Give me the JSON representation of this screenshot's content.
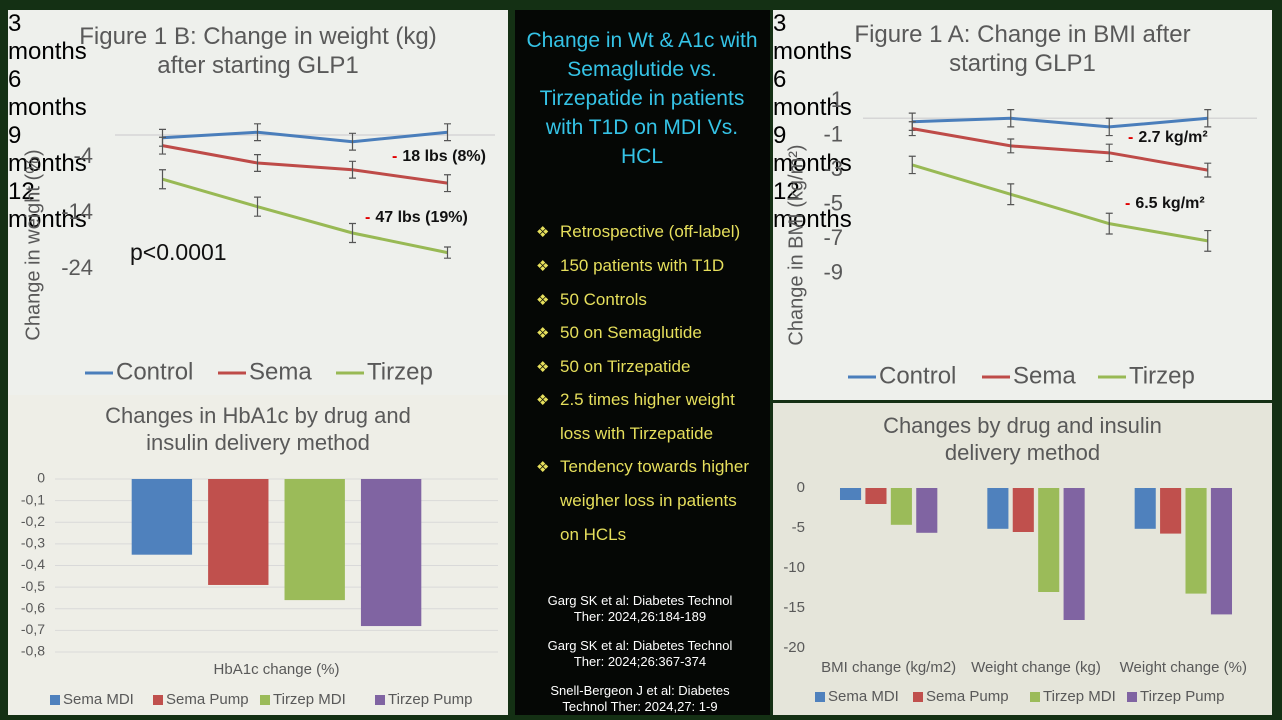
{
  "chart_data": [
    {
      "type": "line",
      "title": "Figure 1 B:  Change in weight (kg) after starting GLP1",
      "y_label": "Change in weight (%)",
      "categories": [
        "3 months",
        "6 months",
        "9 months",
        "12 months"
      ],
      "series": [
        {
          "name": "Control",
          "color": "#4a7ebb",
          "values": [
            -0.5,
            0.5,
            -1.2,
            0.5
          ],
          "errors": [
            1.5,
            1.5,
            1.5,
            1.5
          ]
        },
        {
          "name": "Sema",
          "color": "#be4b48",
          "values": [
            -1.9,
            -5,
            -6.2,
            -8.6
          ],
          "errors": [
            1.5,
            1.5,
            1.5,
            1.5
          ]
        },
        {
          "name": "Tirzep",
          "color": "#98b954",
          "values": [
            -7.9,
            -12.8,
            -17.5,
            -21
          ],
          "errors": [
            1.7,
            1.7,
            1.7,
            1
          ]
        }
      ],
      "ylim": [
        -26,
        0
      ],
      "yticks": [
        -4,
        -14,
        -24
      ],
      "grid": false,
      "legend": "bottom",
      "annotations": [
        {
          "prefix": "-",
          "text": "18 lbs (8%)"
        },
        {
          "prefix": "-",
          "text": "47 lbs (19%)"
        },
        {
          "text": "p<0.0001"
        }
      ]
    },
    {
      "type": "line",
      "title": "Figure 1 A:  Change in BMI after starting GLP1",
      "y_label": "Change in BMI (kg/m²)",
      "categories": [
        "3 months",
        "6 months",
        "9 months",
        "12 months"
      ],
      "series": [
        {
          "name": "Control",
          "color": "#4a7ebb",
          "values": [
            -0.2,
            0,
            -0.5,
            0
          ],
          "errors": [
            0.5,
            0.5,
            0.5,
            0.5
          ]
        },
        {
          "name": "Sema",
          "color": "#be4b48",
          "values": [
            -0.6,
            -1.6,
            -2,
            -3
          ],
          "errors": [
            0.4,
            0.4,
            0.5,
            0.4
          ]
        },
        {
          "name": "Tirzep",
          "color": "#98b954",
          "values": [
            -2.7,
            -4.4,
            -6.1,
            -7.1
          ],
          "errors": [
            0.5,
            0.6,
            0.6,
            0.6
          ]
        }
      ],
      "ylim": [
        -10,
        1
      ],
      "yticks": [
        1,
        -1,
        -3,
        -5,
        -7,
        -9
      ],
      "grid": false,
      "legend": "bottom",
      "annotations": [
        {
          "prefix": "-",
          "text": "2.7 kg/m²"
        },
        {
          "prefix": "-",
          "text": "6.5 kg/m²"
        }
      ]
    },
    {
      "type": "bar",
      "title": "Changes in HbA1c by drug and insulin delivery method",
      "categories": [
        "HbA1c change (%)"
      ],
      "series": [
        {
          "name": "Sema MDI",
          "color": "#4f81bd",
          "values": [
            -0.35
          ]
        },
        {
          "name": "Sema Pump",
          "color": "#c0504d",
          "values": [
            -0.49
          ]
        },
        {
          "name": "Tirzep MDI",
          "color": "#9bbb59",
          "values": [
            -0.56
          ]
        },
        {
          "name": "Tirzep Pump",
          "color": "#8064a2",
          "values": [
            -0.68
          ]
        }
      ],
      "ylim": [
        -0.8,
        0
      ],
      "yticks": [
        0,
        {
          "value": -0.1,
          "label": "-0,1"
        },
        {
          "value": -0.2,
          "label": "-0,2"
        },
        {
          "value": -0.3,
          "label": "-0,3"
        },
        {
          "value": -0.4,
          "label": "-0,4"
        },
        {
          "value": -0.5,
          "label": "-0,5"
        },
        {
          "value": -0.6,
          "label": "-0,6"
        },
        {
          "value": -0.7,
          "label": "-0,7"
        },
        {
          "value": -0.8,
          "label": "-0,8"
        }
      ],
      "grid": true,
      "legend": "bottom"
    },
    {
      "type": "bar",
      "title": "Changes by drug and insulin delivery method",
      "categories": [
        "BMI change (kg/m2)",
        "Weight change (kg)",
        "Weight change (%)"
      ],
      "series": [
        {
          "name": "Sema MDI",
          "color": "#4f81bd",
          "values": [
            -1.5,
            -5.1,
            -5.1
          ]
        },
        {
          "name": "Sema Pump",
          "color": "#c0504d",
          "values": [
            -2,
            -5.5,
            -5.7
          ]
        },
        {
          "name": "Tirzep MDI",
          "color": "#9bbb59",
          "values": [
            -4.6,
            -13,
            -13.2
          ]
        },
        {
          "name": "Tirzep Pump",
          "color": "#8064a2",
          "values": [
            -5.6,
            -16.5,
            -15.8
          ]
        }
      ],
      "ylim": [
        -20,
        0
      ],
      "yticks": [
        0,
        -5,
        -10,
        -15,
        -20
      ],
      "grid": false,
      "legend": "bottom"
    }
  ],
  "summary": {
    "title": "Change in Wt & A1c with Semaglutide vs. Tirzepatide in patients with T1D on MDI Vs. HCL",
    "bullets": [
      "Retrospective (off-label)",
      "150 patients with T1D",
      "50 Controls",
      "50 on Semaglutide",
      "50 on Tirzepatide",
      "2.5 times higher weight loss with Tirzepatide",
      "Tendency towards higher weigher loss in patients on HCLs"
    ],
    "references": [
      "Garg SK et al: Diabetes Technol Ther: 2024,26:184-189",
      "Garg SK et al: Diabetes Technol Ther: 2024;26:367-374",
      "Snell-Bergeon J et al: Diabetes Technol Ther: 2024,27: 1-9"
    ]
  }
}
